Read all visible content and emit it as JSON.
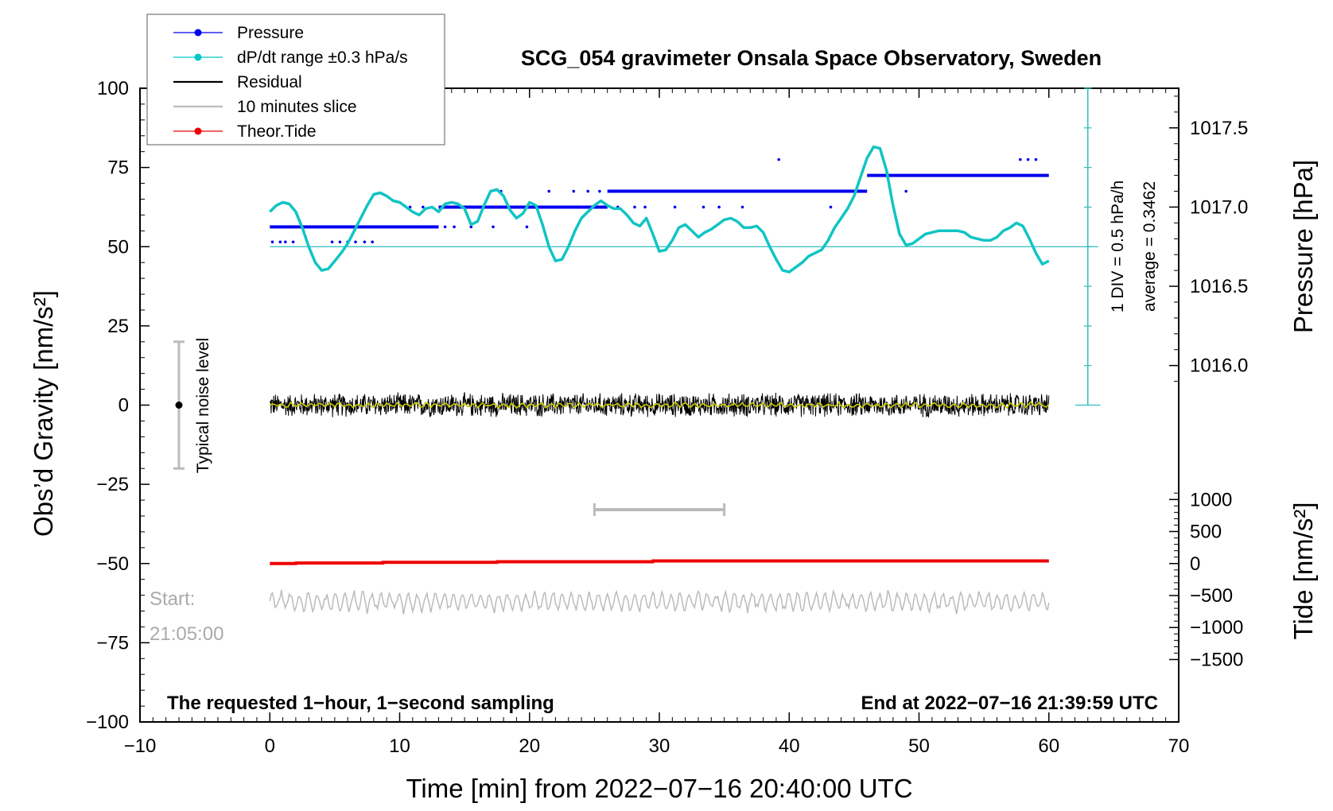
{
  "chart_data": {
    "type": "line",
    "title": "SCG_054 gravimeter Onsala Space Observatory, Sweden",
    "xlabel": "Time [min] from 2022−07−16 20:40:00 UTC",
    "ylabel_left": "Obs’d Gravity [nm/s²]",
    "ylabel_right_pressure": "Pressure [hPa]",
    "ylabel_right_tide": "Tide [nm/s²]",
    "xlim": [
      -10,
      70
    ],
    "ylim_left": [
      -100,
      100
    ],
    "x_ticks": [
      {
        "value": -10,
        "label": "−10"
      },
      {
        "value": 0,
        "label": "0"
      },
      {
        "value": 10,
        "label": "10"
      },
      {
        "value": 20,
        "label": "20"
      },
      {
        "value": 30,
        "label": "30"
      },
      {
        "value": 40,
        "label": "40"
      },
      {
        "value": 50,
        "label": "50"
      },
      {
        "value": 60,
        "label": "60"
      },
      {
        "value": 70,
        "label": "70"
      }
    ],
    "y_ticks_left": [
      {
        "value": 100,
        "label": "100"
      },
      {
        "value": 75,
        "label": "75"
      },
      {
        "value": 50,
        "label": "50"
      },
      {
        "value": 25,
        "label": "25"
      },
      {
        "value": 0,
        "label": "0"
      },
      {
        "value": -25,
        "label": "−25"
      },
      {
        "value": -50,
        "label": "−50"
      },
      {
        "value": -75,
        "label": "−75"
      },
      {
        "value": -100,
        "label": "−100"
      }
    ],
    "pressure_ticks": [
      {
        "value": 1017.5,
        "label": "1017.5"
      },
      {
        "value": 1017.0,
        "label": "1017.0"
      },
      {
        "value": 1016.5,
        "label": "1016.5"
      },
      {
        "value": 1016.0,
        "label": "1016.0"
      }
    ],
    "tide_ticks": [
      {
        "value": 1000,
        "label": "1000"
      },
      {
        "value": 500,
        "label": "500"
      },
      {
        "value": 0,
        "label": "0"
      },
      {
        "value": -500,
        "label": "−500"
      },
      {
        "value": -1000,
        "label": "−1000"
      },
      {
        "value": -1500,
        "label": "−1500"
      }
    ],
    "pressure_scale": {
      "gravity_ref": 50,
      "pressure_ref": 1016.75,
      "gravity_per_hpa": 50
    },
    "tide_scale": {
      "gravity_ref": -50,
      "tide_ref": 0,
      "gravity_per_unit": 0.0202
    },
    "legend": [
      {
        "label": "Pressure",
        "color": "#0000ee",
        "style": "line-dot"
      },
      {
        "label": "dP/dt range ±0.3 hPa/s",
        "color": "#00c8c8",
        "style": "line-dot"
      },
      {
        "label": "Residual",
        "color": "#000000",
        "style": "line"
      },
      {
        "label": "10 minutes slice",
        "color": "#bbbbbb",
        "style": "line"
      },
      {
        "label": "Theor.Tide",
        "color": "#ee0000",
        "style": "line-dot"
      }
    ],
    "series": [
      {
        "name": "dP/dt range ±0.3 hPa/s",
        "color": "#00c8c8",
        "x": [
          0,
          0.5,
          1,
          1.5,
          2,
          2.5,
          3,
          3.5,
          4,
          4.5,
          5,
          5.5,
          6,
          6.5,
          7,
          7.5,
          8,
          8.5,
          9,
          9.5,
          10,
          10.5,
          11,
          11.5,
          12,
          12.5,
          13,
          13.5,
          14,
          14.5,
          15,
          15.5,
          16,
          16.5,
          17,
          17.5,
          18,
          18.5,
          19,
          19.5,
          20,
          20.5,
          21,
          21.5,
          22,
          22.5,
          23,
          23.5,
          24,
          24.5,
          25,
          25.5,
          26,
          26.5,
          27,
          27.5,
          28,
          28.5,
          29,
          29.5,
          30,
          30.5,
          31,
          31.5,
          32,
          32.5,
          33,
          33.5,
          34,
          34.5,
          35,
          35.5,
          36,
          36.5,
          37,
          37.5,
          38,
          38.5,
          39,
          39.5,
          40,
          40.5,
          41,
          41.5,
          42,
          42.5,
          43,
          43.5,
          44,
          44.5,
          45,
          45.5,
          46,
          46.5,
          47,
          47.5,
          48,
          48.5,
          49,
          49.5,
          50,
          50.5,
          51,
          51.5,
          52,
          52.5,
          53,
          53.5,
          54,
          54.5,
          55,
          55.5,
          56,
          56.5,
          57,
          57.5,
          58,
          58.5,
          59,
          59.5,
          60
        ],
        "values": [
          61,
          63,
          64,
          63.5,
          61,
          56,
          50,
          45,
          42.5,
          43,
          45.5,
          48,
          51,
          55,
          59,
          63,
          66.5,
          67,
          66,
          64.5,
          64,
          62.5,
          61,
          60,
          62,
          62.5,
          61,
          63.5,
          64,
          63.5,
          62,
          57,
          58,
          63,
          67.5,
          68,
          66,
          61.5,
          59,
          60.5,
          64,
          63,
          57,
          50,
          45.5,
          46,
          50,
          55,
          59,
          61,
          63,
          64.5,
          63,
          62,
          62,
          60,
          57.5,
          56.5,
          59,
          54,
          48.5,
          49,
          52,
          56,
          57,
          55,
          53,
          54.5,
          55.5,
          57,
          58.5,
          59,
          58,
          56,
          56,
          56.5,
          54.5,
          50,
          46,
          42.5,
          42,
          43.5,
          45,
          47,
          48,
          49,
          52,
          56,
          59,
          62,
          66,
          72,
          78,
          81.5,
          81,
          74,
          63,
          54,
          50.5,
          51,
          52.5,
          54,
          54.5,
          55,
          55,
          55,
          55,
          54.5,
          53,
          52.5,
          52,
          52,
          53,
          55,
          56,
          57.5,
          56.5,
          52.5,
          48,
          44.5,
          45.5
        ]
      },
      {
        "name": "Pressure",
        "color": "#0000ee",
        "unit": "hPa",
        "steps": [
          {
            "from": 0,
            "to": 13,
            "value": 1016.875
          },
          {
            "from": 13,
            "to": 26,
            "value": 1017.0
          },
          {
            "from": 26,
            "to": 46,
            "value": 1017.1
          },
          {
            "from": 46,
            "to": 60,
            "value": 1017.2
          }
        ],
        "outliers": [
          {
            "x": 0.2,
            "value": 1016.78
          },
          {
            "x": 0.8,
            "value": 1016.78
          },
          {
            "x": 1.2,
            "value": 1016.78
          },
          {
            "x": 1.8,
            "value": 1016.78
          },
          {
            "x": 4.8,
            "value": 1016.78
          },
          {
            "x": 5.4,
            "value": 1016.78
          },
          {
            "x": 6,
            "value": 1016.78
          },
          {
            "x": 6.6,
            "value": 1016.78
          },
          {
            "x": 7.3,
            "value": 1016.78
          },
          {
            "x": 7.9,
            "value": 1016.78
          },
          {
            "x": 10.8,
            "value": 1017.0
          },
          {
            "x": 11.8,
            "value": 1017.0
          },
          {
            "x": 13.5,
            "value": 1016.875
          },
          {
            "x": 14.2,
            "value": 1016.875
          },
          {
            "x": 15.5,
            "value": 1016.875
          },
          {
            "x": 17.2,
            "value": 1016.875
          },
          {
            "x": 17.8,
            "value": 1017.1
          },
          {
            "x": 19.8,
            "value": 1016.875
          },
          {
            "x": 21.5,
            "value": 1017.1
          },
          {
            "x": 23.4,
            "value": 1017.1
          },
          {
            "x": 24.5,
            "value": 1017.1
          },
          {
            "x": 25.4,
            "value": 1017.1
          },
          {
            "x": 26.8,
            "value": 1017.0
          },
          {
            "x": 28.1,
            "value": 1017.0
          },
          {
            "x": 28.9,
            "value": 1017.0
          },
          {
            "x": 31.2,
            "value": 1017.0
          },
          {
            "x": 33.4,
            "value": 1017.0
          },
          {
            "x": 34.6,
            "value": 1017.0
          },
          {
            "x": 36.4,
            "value": 1017.0
          },
          {
            "x": 39.2,
            "value": 1017.3
          },
          {
            "x": 43.2,
            "value": 1017.0
          },
          {
            "x": 44.5,
            "value": 1017.1
          },
          {
            "x": 45.6,
            "value": 1017.1
          },
          {
            "x": 49,
            "value": 1017.1
          },
          {
            "x": 57.8,
            "value": 1017.3
          },
          {
            "x": 58.4,
            "value": 1017.3
          },
          {
            "x": 59,
            "value": 1017.3
          }
        ]
      },
      {
        "name": "Residual",
        "color": "#000000",
        "x_range": [
          0,
          60
        ],
        "amplitude_nm_s2": 3.5,
        "mean_nm_s2": 0,
        "note": "1-second sampling noise about 0 nm/s², smoothed overlay in yellow"
      },
      {
        "name": "Theor.Tide",
        "color": "#ee0000",
        "unit": "nm/s²",
        "x": [
          0,
          2,
          2.01,
          8.7,
          8.71,
          17.5,
          17.51,
          29.5,
          29.51,
          60
        ],
        "values": [
          -1,
          -1,
          8,
          8,
          18,
          18,
          28,
          28,
          40,
          40
        ]
      },
      {
        "name": "10 minutes slice",
        "color": "#bbbbbb",
        "x_range": [
          0,
          60
        ],
        "center_gravity": -62,
        "amplitude": 3.5
      }
    ],
    "annotations": {
      "noise_bar": {
        "x": -7,
        "y_low": -20,
        "y_high": 20,
        "center": 0,
        "label": "Typical noise level"
      },
      "slice_bar": {
        "x_from": 25,
        "x_to": 35,
        "y": -33
      },
      "start_label_1": "Start:",
      "start_label_2": "21:05:00",
      "footer_left": "The requested 1−hour, 1−second sampling",
      "footer_right": "End at 2022−07−16 21:39:59 UTC",
      "scale_label_1": "1 DIV = 0.5 hPa/h",
      "scale_label_2": "average = 0.3462",
      "scale_bar": {
        "x": 63,
        "y_low": 0,
        "y_high": 100
      }
    }
  }
}
